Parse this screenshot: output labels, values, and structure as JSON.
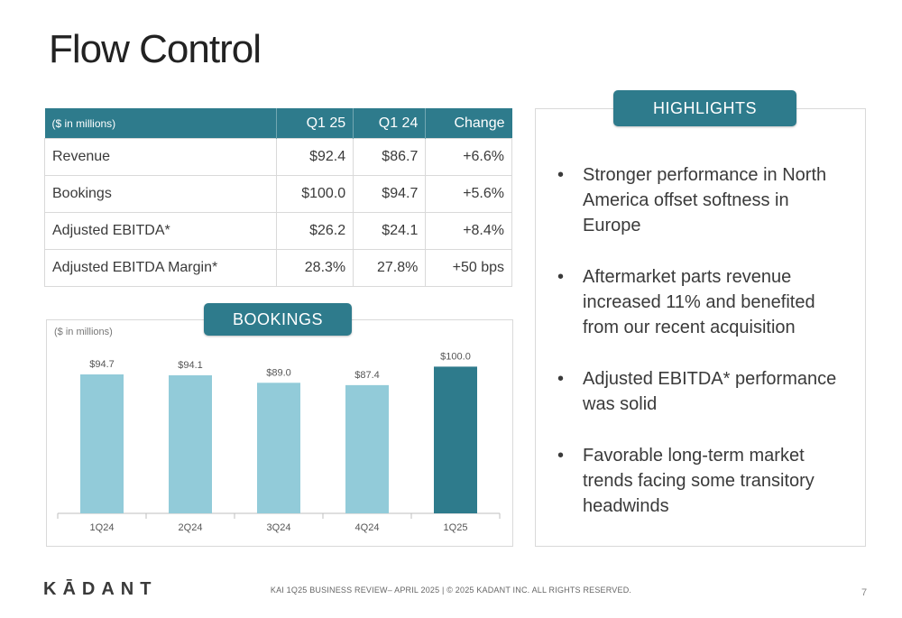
{
  "page": {
    "title": "Flow Control"
  },
  "table": {
    "headers": [
      "($ in millions)",
      "Q1 25",
      "Q1 24",
      "Change"
    ],
    "rows": [
      [
        "Revenue",
        "$92.4",
        "$86.7",
        "+6.6%"
      ],
      [
        "Bookings",
        "$100.0",
        "$94.7",
        "+5.6%"
      ],
      [
        "Adjusted EBITDA*",
        "$26.2",
        "$24.1",
        "+8.4%"
      ],
      [
        "Adjusted EBITDA Margin*",
        "28.3%",
        "27.8%",
        "+50 bps"
      ]
    ]
  },
  "bookings_label": "BOOKINGS",
  "highlights": {
    "label": "HIGHLIGHTS",
    "items": [
      "Stronger performance in North America offset softness in Europe",
      "Aftermarket parts revenue increased 11% and benefited from our recent acquisition",
      "Adjusted EBITDA* performance was solid",
      "Favorable long-term market trends facing some transitory headwinds"
    ]
  },
  "chart_data": {
    "type": "bar",
    "unit_note": "($ in millions)",
    "categories": [
      "1Q24",
      "2Q24",
      "3Q24",
      "4Q24",
      "1Q25"
    ],
    "values": [
      94.7,
      94.1,
      89.0,
      87.4,
      100.0
    ],
    "data_labels": [
      "$94.7",
      "$94.1",
      "$89.0",
      "$87.4",
      "$100.0"
    ],
    "ylim": [
      0,
      115
    ],
    "grid": false,
    "colors": {
      "default": "#92cbd9",
      "highlight": "#2e7b8c"
    },
    "highlight_index": 4
  },
  "footer": {
    "logo": "KĀDANT",
    "text": "KAI 1Q25 BUSINESS REVIEW– APRIL 2025 | © 2025 KADANT INC. ALL RIGHTS RESERVED.",
    "page_number": "7"
  }
}
